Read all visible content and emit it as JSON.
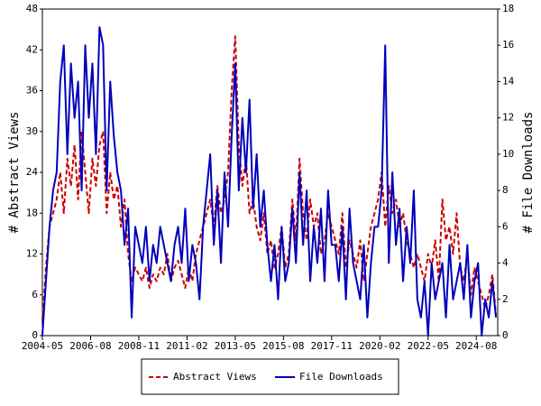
{
  "chart_data": {
    "type": "line",
    "y_label": "# Abstract Views",
    "y2_label": "# File Downloads",
    "x": [
      "2004-05",
      "2004-07",
      "2004-09",
      "2004-11",
      "2005-01",
      "2005-03",
      "2005-05",
      "2005-07",
      "2005-09",
      "2005-11",
      "2006-01",
      "2006-03",
      "2006-05",
      "2006-07",
      "2006-09",
      "2006-11",
      "2007-01",
      "2007-03",
      "2007-05",
      "2007-07",
      "2007-09",
      "2007-11",
      "2008-01",
      "2008-03",
      "2008-05",
      "2008-07",
      "2008-09",
      "2008-11",
      "2009-01",
      "2009-03",
      "2009-05",
      "2009-07",
      "2009-09",
      "2009-11",
      "2010-01",
      "2010-03",
      "2010-05",
      "2010-07",
      "2010-09",
      "2010-11",
      "2011-01",
      "2011-03",
      "2011-05",
      "2011-07",
      "2011-09",
      "2011-11",
      "2012-01",
      "2012-03",
      "2012-05",
      "2012-07",
      "2012-09",
      "2012-11",
      "2013-01",
      "2013-03",
      "2013-05",
      "2013-07",
      "2013-09",
      "2013-11",
      "2014-01",
      "2014-03",
      "2014-05",
      "2014-07",
      "2014-09",
      "2014-11",
      "2015-01",
      "2015-03",
      "2015-05",
      "2015-07",
      "2015-09",
      "2015-11",
      "2016-01",
      "2016-03",
      "2016-05",
      "2016-07",
      "2016-09",
      "2016-11",
      "2017-01",
      "2017-03",
      "2017-05",
      "2017-07",
      "2017-09",
      "2017-11",
      "2018-01",
      "2018-03",
      "2018-05",
      "2018-07",
      "2018-09",
      "2018-11",
      "2019-01",
      "2019-03",
      "2019-05",
      "2019-07",
      "2019-09",
      "2019-11",
      "2020-01",
      "2020-03",
      "2020-05",
      "2020-07",
      "2020-09",
      "2020-11",
      "2021-01",
      "2021-03",
      "2021-05",
      "2021-07",
      "2021-09",
      "2021-11",
      "2022-01",
      "2022-03",
      "2022-05",
      "2022-07",
      "2022-09",
      "2022-11",
      "2023-01",
      "2023-03",
      "2023-05",
      "2023-07",
      "2023-09",
      "2023-11",
      "2024-01",
      "2024-03",
      "2024-05",
      "2024-07",
      "2024-09",
      "2024-11",
      "2025-01",
      "2025-03",
      "2025-05",
      "2025-07"
    ],
    "series": [
      {
        "name": "Abstract Views",
        "color": "#cc0000",
        "dashed": true,
        "values": [
          2,
          10,
          16,
          18,
          20,
          24,
          18,
          26,
          22,
          28,
          20,
          30,
          24,
          18,
          26,
          22,
          28,
          30,
          18,
          24,
          20,
          22,
          16,
          20,
          12,
          8,
          10,
          9,
          8,
          10,
          7,
          9,
          8,
          10,
          9,
          12,
          8,
          10,
          11,
          9,
          7,
          10,
          8,
          12,
          14,
          16,
          18,
          20,
          16,
          22,
          18,
          20,
          24,
          36,
          44,
          28,
          22,
          26,
          18,
          20,
          16,
          14,
          18,
          12,
          14,
          10,
          12,
          16,
          10,
          12,
          20,
          14,
          26,
          18,
          14,
          20,
          16,
          18,
          12,
          14,
          18,
          16,
          14,
          12,
          18,
          10,
          14,
          12,
          10,
          14,
          8,
          12,
          16,
          18,
          20,
          24,
          16,
          22,
          18,
          20,
          16,
          18,
          14,
          12,
          10,
          12,
          10,
          8,
          12,
          10,
          14,
          8,
          20,
          14,
          16,
          12,
          18,
          10,
          8,
          12,
          6,
          10,
          8,
          6,
          4,
          6,
          9,
          3
        ]
      },
      {
        "name": "File Downloads",
        "color": "#0000bb",
        "dashed": false,
        "axis": "y2",
        "values": [
          0,
          3,
          6,
          8,
          9,
          14,
          16,
          10,
          15,
          12,
          14,
          8,
          16,
          12,
          15,
          10,
          17,
          16,
          8,
          14,
          11,
          9,
          8,
          5,
          7,
          1,
          6,
          5,
          4,
          6,
          3,
          5,
          4,
          6,
          5,
          4,
          3,
          5,
          6,
          4,
          7,
          3,
          5,
          4,
          2,
          6,
          8,
          10,
          5,
          8,
          4,
          9,
          6,
          11,
          15,
          8,
          12,
          9,
          13,
          7,
          10,
          6,
          8,
          5,
          3,
          5,
          2,
          6,
          3,
          4,
          7,
          4,
          9,
          5,
          8,
          3,
          6,
          4,
          7,
          3,
          8,
          5,
          5,
          3,
          6,
          2,
          7,
          4,
          3,
          2,
          5,
          1,
          4,
          6,
          6,
          8,
          16,
          4,
          9,
          5,
          7,
          3,
          6,
          4,
          8,
          2,
          1,
          3,
          0,
          4,
          2,
          3,
          4,
          1,
          5,
          2,
          3,
          4,
          2,
          5,
          1,
          3,
          4,
          0,
          2,
          1,
          3,
          1
        ]
      }
    ],
    "xlim": [
      "2004-05",
      "2025-08"
    ],
    "xticks": [
      "2004-05",
      "2006-08",
      "2008-11",
      "2011-02",
      "2013-05",
      "2015-08",
      "2017-11",
      "2020-02",
      "2022-05",
      "2024-08"
    ],
    "ylim": [
      0,
      48
    ],
    "yticks": [
      0,
      6,
      12,
      18,
      24,
      30,
      36,
      42,
      48
    ],
    "y2lim": [
      0,
      18
    ],
    "y2ticks": [
      0,
      2,
      4,
      6,
      8,
      10,
      12,
      14,
      16,
      18
    ],
    "legend": "bottom"
  }
}
